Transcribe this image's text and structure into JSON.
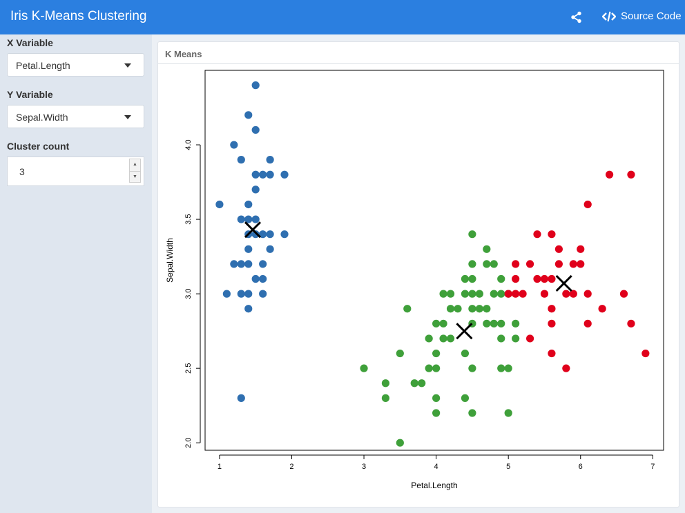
{
  "header": {
    "title": "Iris K-Means Clustering",
    "source_label": "Source Code",
    "share_icon": "share-icon",
    "code_icon": "code-icon",
    "color": "#2b7fe0"
  },
  "sidebar": {
    "x_variable": {
      "label": "X Variable",
      "value": "Petal.Length"
    },
    "y_variable": {
      "label": "Y Variable",
      "value": "Sepal.Width"
    },
    "cluster_count": {
      "label": "Cluster count",
      "value": "3"
    }
  },
  "panel": {
    "title": "K Means"
  },
  "chart_data": {
    "type": "scatter",
    "xlabel": "Petal.Length",
    "ylabel": "Sepal.Width",
    "xlim": [
      0.8,
      7.15
    ],
    "ylim": [
      1.95,
      4.5
    ],
    "xticks": [
      "1",
      "2",
      "3",
      "4",
      "5",
      "6",
      "7"
    ],
    "yticks": [
      "2.0",
      "2.5",
      "3.0",
      "3.5",
      "4.0"
    ],
    "grid": false,
    "colors": {
      "cluster1": "#2f6fb0",
      "cluster2": "#3fa03a",
      "cluster3": "#e0001b",
      "centers": "#000000"
    },
    "series": [
      {
        "points": [
          [
            1.5,
            4.4
          ],
          [
            1.4,
            4.2
          ],
          [
            1.5,
            4.1
          ],
          [
            1.2,
            4.0
          ],
          [
            1.3,
            3.9
          ],
          [
            1.7,
            3.9
          ],
          [
            1.5,
            3.8
          ],
          [
            1.6,
            3.8
          ],
          [
            1.7,
            3.8
          ],
          [
            1.9,
            3.8
          ],
          [
            1.5,
            3.7
          ],
          [
            1.0,
            3.6
          ],
          [
            1.4,
            3.6
          ],
          [
            1.3,
            3.5
          ],
          [
            1.4,
            3.5
          ],
          [
            1.5,
            3.5
          ],
          [
            1.6,
            3.4
          ],
          [
            1.4,
            3.4
          ],
          [
            1.5,
            3.4
          ],
          [
            1.7,
            3.4
          ],
          [
            1.9,
            3.4
          ],
          [
            1.4,
            3.3
          ],
          [
            1.7,
            3.3
          ],
          [
            1.2,
            3.2
          ],
          [
            1.3,
            3.2
          ],
          [
            1.4,
            3.2
          ],
          [
            1.6,
            3.2
          ],
          [
            1.5,
            3.1
          ],
          [
            1.6,
            3.1
          ],
          [
            1.1,
            3.0
          ],
          [
            1.3,
            3.0
          ],
          [
            1.4,
            3.0
          ],
          [
            1.6,
            3.0
          ],
          [
            1.4,
            2.9
          ],
          [
            1.3,
            2.3
          ]
        ]
      },
      {
        "points": [
          [
            4.5,
            3.4
          ],
          [
            4.7,
            3.3
          ],
          [
            4.5,
            3.2
          ],
          [
            4.7,
            3.2
          ],
          [
            4.8,
            3.2
          ],
          [
            4.5,
            3.1
          ],
          [
            4.9,
            3.1
          ],
          [
            4.4,
            3.1
          ],
          [
            4.2,
            3.0
          ],
          [
            4.1,
            3.0
          ],
          [
            4.4,
            3.0
          ],
          [
            4.5,
            3.0
          ],
          [
            4.6,
            3.0
          ],
          [
            4.8,
            3.0
          ],
          [
            4.9,
            3.0
          ],
          [
            5.0,
            3.0
          ],
          [
            3.6,
            2.9
          ],
          [
            4.2,
            2.9
          ],
          [
            4.3,
            2.9
          ],
          [
            4.5,
            2.9
          ],
          [
            4.6,
            2.9
          ],
          [
            4.7,
            2.9
          ],
          [
            4.0,
            2.8
          ],
          [
            4.1,
            2.8
          ],
          [
            4.5,
            2.8
          ],
          [
            4.7,
            2.8
          ],
          [
            4.8,
            2.8
          ],
          [
            4.9,
            2.8
          ],
          [
            5.1,
            2.8
          ],
          [
            3.9,
            2.7
          ],
          [
            4.1,
            2.7
          ],
          [
            4.2,
            2.7
          ],
          [
            4.9,
            2.7
          ],
          [
            5.1,
            2.7
          ],
          [
            4.0,
            2.6
          ],
          [
            4.4,
            2.6
          ],
          [
            3.5,
            2.6
          ],
          [
            3.0,
            2.5
          ],
          [
            3.9,
            2.5
          ],
          [
            4.0,
            2.5
          ],
          [
            4.5,
            2.5
          ],
          [
            4.9,
            2.5
          ],
          [
            5.0,
            2.5
          ],
          [
            3.3,
            2.4
          ],
          [
            3.7,
            2.4
          ],
          [
            3.8,
            2.4
          ],
          [
            3.3,
            2.3
          ],
          [
            4.0,
            2.3
          ],
          [
            4.4,
            2.3
          ],
          [
            4.0,
            2.2
          ],
          [
            4.5,
            2.2
          ],
          [
            5.0,
            2.2
          ],
          [
            3.5,
            2.0
          ]
        ]
      },
      {
        "points": [
          [
            6.4,
            3.8
          ],
          [
            6.7,
            3.8
          ],
          [
            6.1,
            3.6
          ],
          [
            5.4,
            3.4
          ],
          [
            5.6,
            3.4
          ],
          [
            5.7,
            3.3
          ],
          [
            6.0,
            3.3
          ],
          [
            5.9,
            3.2
          ],
          [
            6.0,
            3.2
          ],
          [
            5.1,
            3.2
          ],
          [
            5.3,
            3.2
          ],
          [
            5.7,
            3.2
          ],
          [
            5.1,
            3.1
          ],
          [
            5.4,
            3.1
          ],
          [
            5.5,
            3.1
          ],
          [
            5.6,
            3.1
          ],
          [
            5.0,
            3.0
          ],
          [
            5.1,
            3.0
          ],
          [
            5.2,
            3.0
          ],
          [
            5.5,
            3.0
          ],
          [
            5.8,
            3.0
          ],
          [
            5.9,
            3.0
          ],
          [
            6.1,
            3.0
          ],
          [
            6.6,
            3.0
          ],
          [
            5.6,
            2.9
          ],
          [
            6.3,
            2.9
          ],
          [
            5.6,
            2.8
          ],
          [
            6.1,
            2.8
          ],
          [
            6.7,
            2.8
          ],
          [
            5.3,
            2.7
          ],
          [
            5.6,
            2.6
          ],
          [
            6.9,
            2.6
          ],
          [
            5.8,
            2.5
          ]
        ]
      }
    ],
    "centers": [
      [
        1.46,
        3.43
      ],
      [
        4.39,
        2.75
      ],
      [
        5.77,
        3.07
      ]
    ]
  }
}
